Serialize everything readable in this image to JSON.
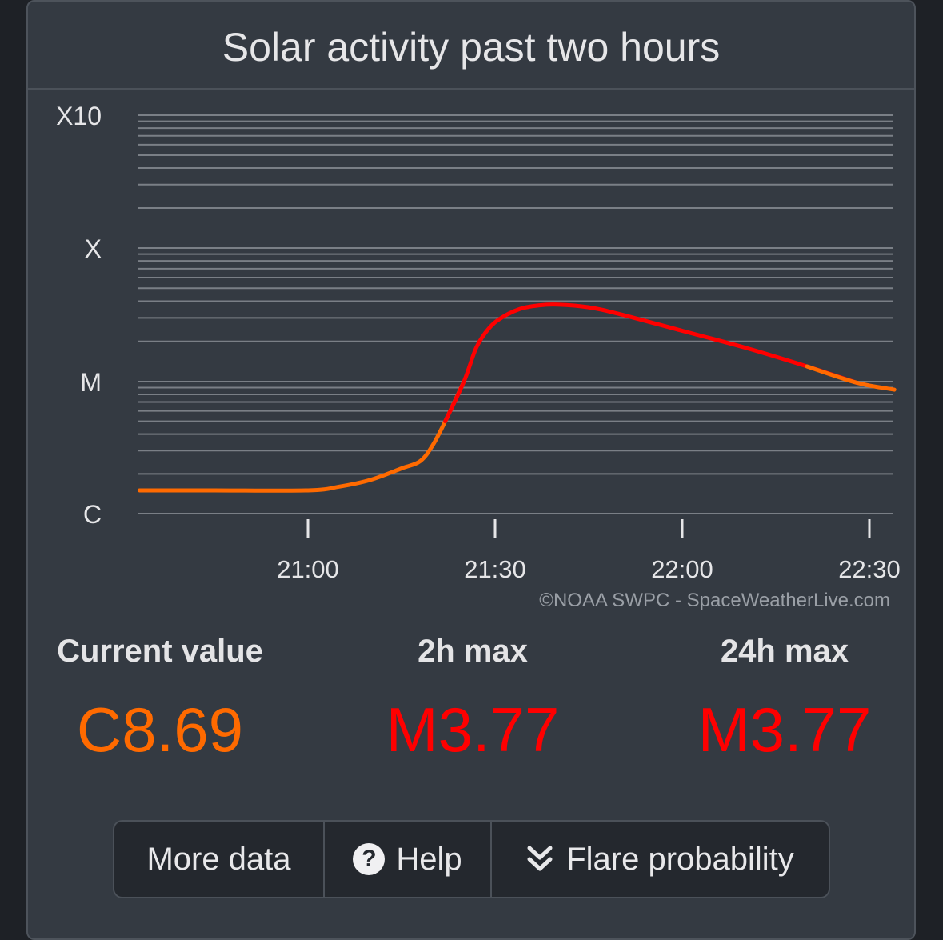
{
  "header": {
    "title": "Solar activity past two hours"
  },
  "chart_data": {
    "type": "line",
    "title": "Solar activity past two hours",
    "y_scale": "log",
    "y_tick_labels": [
      "C",
      "M",
      "X",
      "X10"
    ],
    "x_tick_labels": [
      "21:00",
      "21:30",
      "22:00",
      "22:30"
    ],
    "xlim": [
      "20:33",
      "22:34"
    ],
    "grid": true,
    "series": [
      {
        "points": [
          [
            "20:33",
            "C1.5"
          ],
          [
            "20:45",
            "C1.5"
          ],
          [
            "21:00",
            "C1.5"
          ],
          [
            "21:05",
            "C1.6"
          ],
          [
            "21:10",
            "C1.8"
          ],
          [
            "21:15",
            "C2.2"
          ],
          [
            "21:18",
            "C2.5"
          ],
          [
            "21:20",
            "C3.3"
          ],
          [
            "21:22",
            "C5.0"
          ],
          [
            "21:25",
            "M1.0"
          ],
          [
            "21:27",
            "M1.8"
          ],
          [
            "21:29",
            "M2.5"
          ],
          [
            "21:31",
            "M3.0"
          ],
          [
            "21:34",
            "M3.5"
          ],
          [
            "21:37",
            "M3.72"
          ],
          [
            "21:40",
            "M3.77"
          ],
          [
            "21:45",
            "M3.6"
          ],
          [
            "21:50",
            "M3.2"
          ],
          [
            "22:00",
            "M2.4"
          ],
          [
            "22:10",
            "M1.8"
          ],
          [
            "22:20",
            "M1.3"
          ],
          [
            "22:28",
            "C9.8"
          ],
          [
            "22:34",
            "C8.69"
          ]
        ]
      }
    ],
    "colors": {
      "c_class": "#ff6a00",
      "m_class": "#ff0000"
    }
  },
  "credit": "©NOAA SWPC - SpaceWeatherLive.com",
  "stats": [
    {
      "label": "Current value",
      "value": "C8.69",
      "color": "#ff6a00"
    },
    {
      "label": "2h max",
      "value": "M3.77",
      "color": "#ff0000"
    },
    {
      "label": "24h max",
      "value": "M3.77",
      "color": "#ff0000"
    }
  ],
  "buttons": {
    "more_data": "More data",
    "help": "Help",
    "help_icon": "question-circle-icon",
    "flare_probability": "Flare probability",
    "flare_icon": "double-chevron-down-icon"
  },
  "theme": {
    "panel_bg": "#343a42",
    "page_bg": "#1e2126",
    "grid": "#7a7f86"
  }
}
